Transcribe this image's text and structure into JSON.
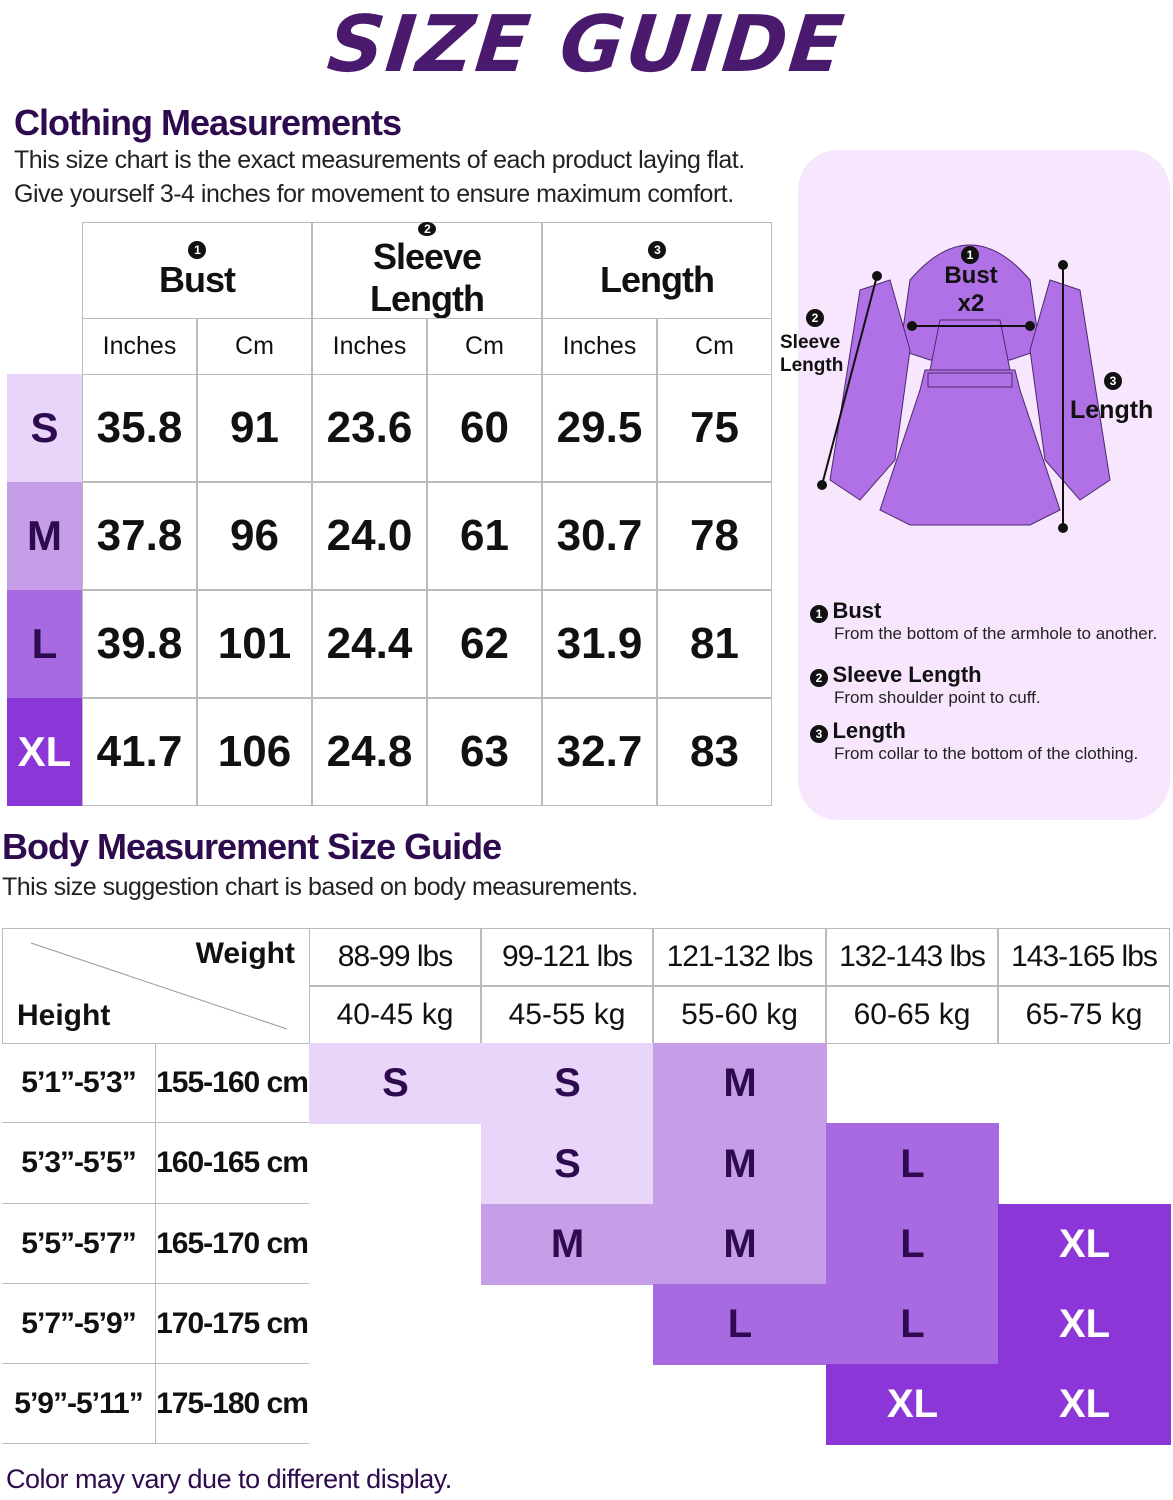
{
  "title": "SIZE GUIDE",
  "clothing": {
    "heading": "Clothing Measurements",
    "desc1": "This size chart is the exact measurements of each product laying flat.",
    "desc2": "Give yourself 3-4 inches for movement to ensure maximum comfort.",
    "columns": [
      {
        "num": "1",
        "label": "Bust"
      },
      {
        "num": "2",
        "label": "Sleeve Length"
      },
      {
        "num": "3",
        "label": "Length"
      }
    ],
    "units": [
      "Inches",
      "Cm",
      "Inches",
      "Cm",
      "Inches",
      "Cm"
    ],
    "rows": [
      {
        "size": "S",
        "values": [
          "35.8",
          "91",
          "23.6",
          "60",
          "29.5",
          "75"
        ]
      },
      {
        "size": "M",
        "values": [
          "37.8",
          "96",
          "24.0",
          "61",
          "30.7",
          "78"
        ]
      },
      {
        "size": "L",
        "values": [
          "39.8",
          "101",
          "24.4",
          "62",
          "31.9",
          "81"
        ]
      },
      {
        "size": "XL",
        "values": [
          "41.7",
          "106",
          "24.8",
          "63",
          "32.7",
          "83"
        ]
      }
    ]
  },
  "diagram": {
    "bust_label": "Bust",
    "bust_x2": "x2",
    "sleeve_label1": "Sleeve",
    "sleeve_label2": "Length",
    "length_label": "Length",
    "legend": [
      {
        "num": "1",
        "title": "Bust",
        "desc": "From the bottom of the armhole to another."
      },
      {
        "num": "2",
        "title": "Sleeve Length",
        "desc": "From shoulder point to cuff."
      },
      {
        "num": "3",
        "title": "Length",
        "desc": "From collar to the bottom of the clothing."
      }
    ]
  },
  "body": {
    "heading": "Body Measurement Size Guide",
    "desc": "This size suggestion chart is based on body measurements.",
    "weight_label": "Weight",
    "height_label": "Height",
    "weights_lbs": [
      "88-99 lbs",
      "99-121 lbs",
      "121-132 lbs",
      "132-143 lbs",
      "143-165 lbs"
    ],
    "weights_kg": [
      "40-45 kg",
      "45-55 kg",
      "55-60 kg",
      "60-65 kg",
      "65-75 kg"
    ],
    "rows": [
      {
        "ft": "5’1”-5’3”",
        "cm": "155-160 cm",
        "sizes": [
          "S",
          "S",
          "M",
          "",
          ""
        ]
      },
      {
        "ft": "5’3”-5’5”",
        "cm": "160-165 cm",
        "sizes": [
          "",
          "S",
          "M",
          "L",
          ""
        ]
      },
      {
        "ft": "5’5”-5’7”",
        "cm": "165-170 cm",
        "sizes": [
          "",
          "M",
          "M",
          "L",
          "XL"
        ]
      },
      {
        "ft": "5’7”-5’9”",
        "cm": "170-175 cm",
        "sizes": [
          "",
          "",
          "L",
          "L",
          "XL"
        ]
      },
      {
        "ft": "5’9”-5’11”",
        "cm": "175-180 cm",
        "sizes": [
          "",
          "",
          "",
          "XL",
          "XL"
        ]
      }
    ]
  },
  "footer": "Color may vary due to different display.",
  "colors": {
    "S": "#ead5fa",
    "M": "#c69ee8",
    "L": "#a86ae0",
    "XL": "#8b37d8",
    "heading": "#2d0b4e",
    "title": "#4a1a6e",
    "panel": "#f7e6fd"
  }
}
